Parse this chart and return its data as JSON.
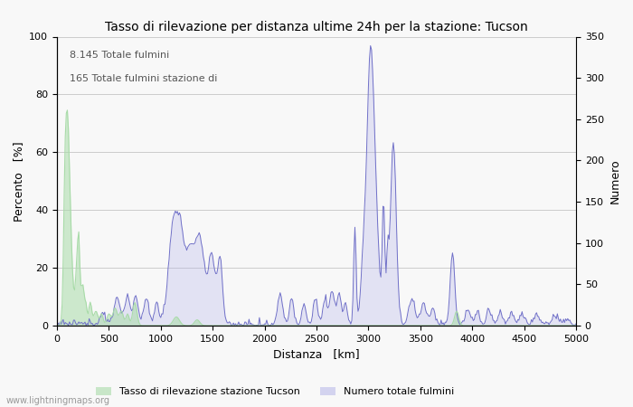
{
  "title": "Tasso di rilevazione per distanza ultime 24h per la stazione: Tucson",
  "xlabel": "Distanza   [km]",
  "ylabel_left": "Percento   [%]",
  "ylabel_right": "Numero",
  "annotation_line1": "8.145 Totale fulmini",
  "annotation_line2": "165 Totale fulmini stazione di",
  "legend_green": "Tasso di rilevazione stazione Tucson",
  "legend_blue": "Numero totale fulmini",
  "watermark": "www.lightningmaps.org",
  "xlim": [
    0,
    5000
  ],
  "ylim_left": [
    0,
    100
  ],
  "ylim_right": [
    0,
    350
  ],
  "x_ticks": [
    0,
    500,
    1000,
    1500,
    2000,
    2500,
    3000,
    3500,
    4000,
    4500,
    5000
  ],
  "y_ticks_left": [
    0,
    20,
    40,
    60,
    80,
    100
  ],
  "y_ticks_right": [
    0,
    50,
    100,
    150,
    200,
    250,
    300,
    350
  ],
  "green_color": "#a8dba8",
  "blue_color": "#b0b0e8",
  "blue_line_color": "#7070c8",
  "background_color": "#f8f8f8",
  "grid_color": "#cccccc",
  "title_fontsize": 10,
  "label_fontsize": 9,
  "tick_fontsize": 8,
  "annot_fontsize": 8,
  "legend_fontsize": 8,
  "watermark_fontsize": 7
}
